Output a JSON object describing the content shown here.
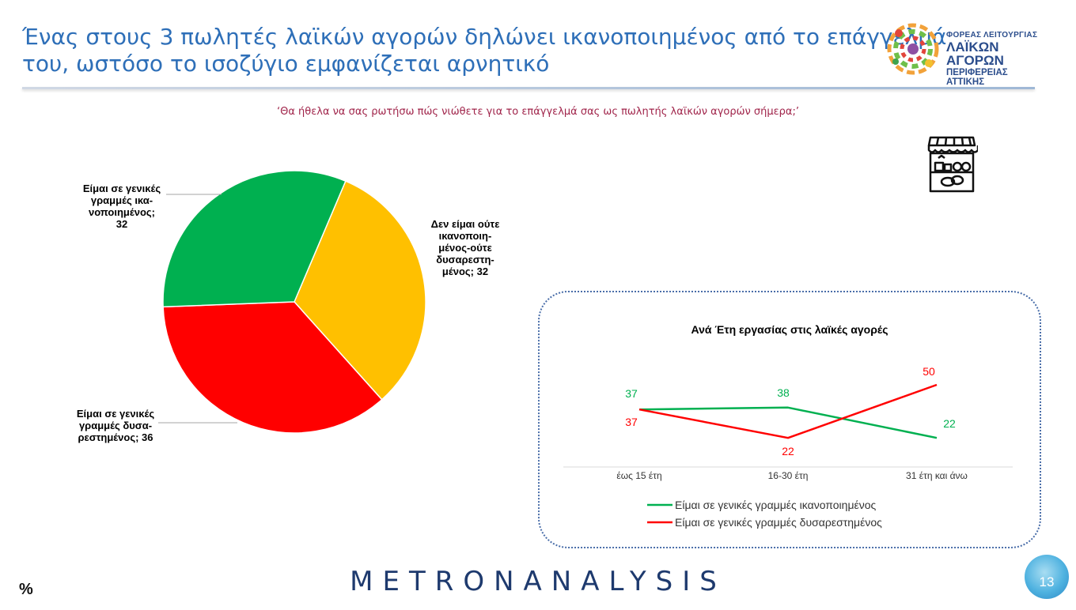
{
  "header": {
    "title_line1": "Ένας στους 3 πωλητές λαϊκών αγορών δηλώνει ικανοποιημένος από το επάγγελμά",
    "title_line2": "του, ωστόσο το ισοζύγιο εμφανίζεται αρνητικό",
    "logo_line1": "ΦΟΡΕΑΣ ΛΕΙΤΟΥΡΓΙΑΣ",
    "logo_line2": "ΛΑΪΚΩΝ ΑΓΟΡΩΝ",
    "logo_line3": "ΠΕΡΙΦΕΡΕΙΑΣ ΑΤΤΙΚΗΣ"
  },
  "question": "‘Θα ήθελα να σας ρωτήσω πώς νιώθετε για το επάγγελμά σας ως πωλητής λαϊκών αγορών σήμερα;’",
  "icons": {
    "market": "market-stall-icon"
  },
  "chart_data": [
    {
      "type": "pie",
      "title": "",
      "slices": [
        {
          "label_lines": [
            "Δεν είμαι ούτε",
            "ικανοποιη-",
            "μένος-ούτε",
            "δυσαρεστη-",
            "μένος; 32"
          ],
          "value": 32,
          "color": "#ffc000"
        },
        {
          "label_lines": [
            "Είμαι σε γενικές",
            "γραμμές δυσα-",
            "ρεστημένος; 36"
          ],
          "value": 36,
          "color": "#ff0000"
        },
        {
          "label_lines": [
            "Είμαι σε γενικές",
            "γραμμές ικα-",
            "νοποιημένος;",
            "32"
          ],
          "value": 32,
          "color": "#00b050"
        }
      ]
    },
    {
      "type": "line",
      "title": "Ανά Έτη εργασίας στις λαϊκές αγορές",
      "categories": [
        "έως 15 έτη",
        "16-30 έτη",
        "31 έτη και άνω"
      ],
      "series": [
        {
          "name": "Είμαι σε γενικές γραμμές ικανοποιημένος",
          "values": [
            37,
            38,
            22
          ],
          "color": "#00b050"
        },
        {
          "name": "Είμαι σε γενικές γραμμές δυσαρεστημένος",
          "values": [
            37,
            22,
            50
          ],
          "color": "#ff0000"
        }
      ],
      "legend": "bottom"
    }
  ],
  "footer": {
    "unit": "%",
    "brand": "METRONANALYSIS",
    "page_number": "13"
  }
}
